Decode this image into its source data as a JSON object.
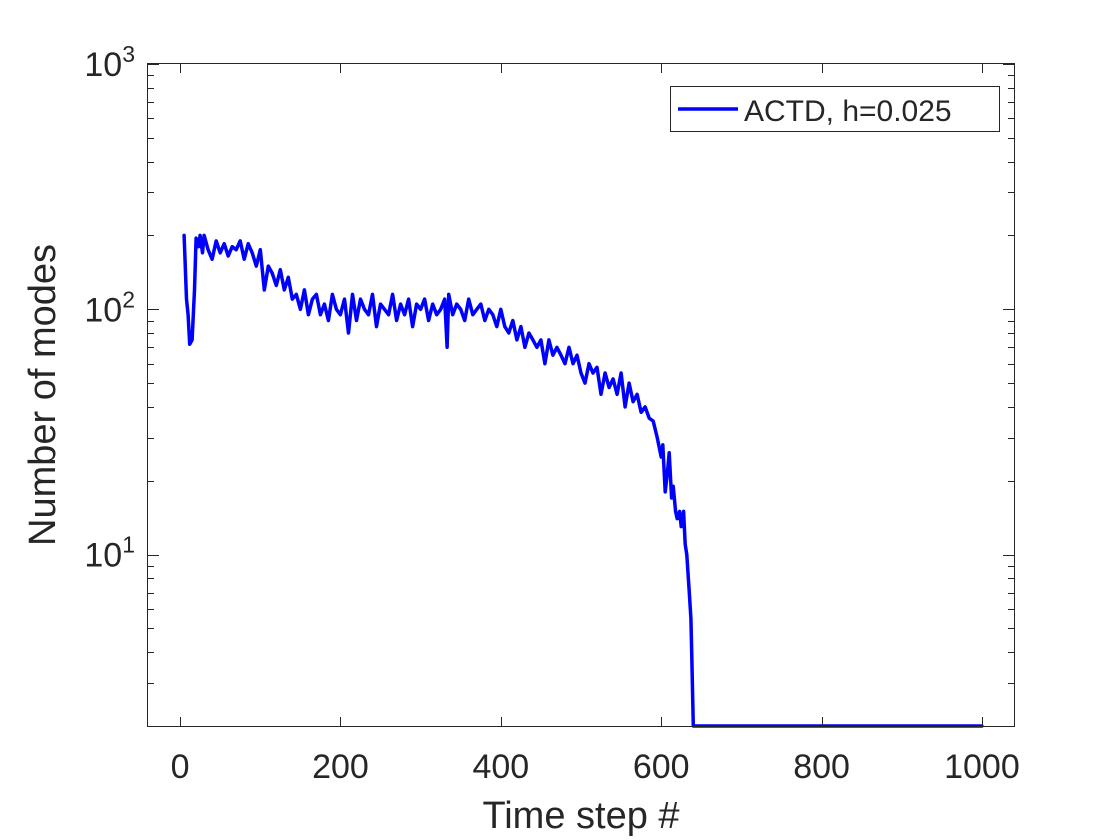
{
  "chart_data": {
    "type": "line",
    "xlabel": "Time step #",
    "ylabel": "Number of modes",
    "xlim": [
      -40,
      1040
    ],
    "ylim": [
      2,
      1000
    ],
    "yscale": "log",
    "xticks": [
      0,
      200,
      400,
      600,
      800,
      1000
    ],
    "yticks": [
      {
        "value": 10,
        "base": "10",
        "exp": "1"
      },
      {
        "value": 100,
        "base": "10",
        "exp": "2"
      },
      {
        "value": 1000,
        "base": "10",
        "exp": "3"
      }
    ],
    "grid": false,
    "legend": {
      "position": "top-right"
    },
    "series": [
      {
        "name": "ACTD, h=0.025",
        "color": "#0000ff",
        "x": [
          5,
          8,
          10,
          12,
          15,
          18,
          20,
          23,
          25,
          28,
          30,
          35,
          40,
          45,
          50,
          55,
          60,
          65,
          70,
          75,
          80,
          85,
          90,
          95,
          100,
          105,
          110,
          115,
          120,
          125,
          130,
          135,
          140,
          145,
          150,
          155,
          160,
          165,
          170,
          175,
          180,
          185,
          190,
          195,
          200,
          205,
          210,
          215,
          220,
          225,
          230,
          235,
          240,
          245,
          250,
          255,
          260,
          265,
          270,
          275,
          280,
          285,
          290,
          295,
          300,
          305,
          310,
          315,
          320,
          325,
          330,
          333,
          335,
          340,
          345,
          350,
          355,
          360,
          365,
          370,
          375,
          380,
          385,
          390,
          395,
          400,
          405,
          410,
          415,
          420,
          425,
          430,
          435,
          440,
          445,
          450,
          455,
          460,
          465,
          470,
          475,
          480,
          485,
          490,
          495,
          500,
          505,
          510,
          515,
          520,
          525,
          530,
          535,
          540,
          545,
          550,
          555,
          560,
          565,
          570,
          575,
          580,
          585,
          590,
          595,
          600,
          602,
          605,
          608,
          610,
          613,
          615,
          618,
          620,
          623,
          625,
          628,
          630,
          632,
          635,
          637,
          638,
          640,
          642,
          645,
          650,
          700,
          800,
          900,
          1000
        ],
        "y": [
          200,
          110,
          95,
          72,
          75,
          120,
          195,
          180,
          200,
          170,
          200,
          175,
          160,
          190,
          170,
          185,
          165,
          180,
          175,
          190,
          160,
          185,
          170,
          150,
          175,
          120,
          150,
          140,
          125,
          145,
          120,
          135,
          110,
          115,
          100,
          120,
          95,
          110,
          115,
          95,
          105,
          90,
          115,
          100,
          95,
          110,
          80,
          115,
          90,
          110,
          100,
          95,
          115,
          85,
          105,
          100,
          95,
          115,
          90,
          105,
          95,
          110,
          85,
          105,
          100,
          110,
          90,
          105,
          95,
          100,
          110,
          70,
          115,
          95,
          105,
          100,
          90,
          110,
          95,
          100,
          105,
          90,
          100,
          95,
          85,
          100,
          85,
          80,
          90,
          75,
          85,
          70,
          80,
          75,
          70,
          75,
          60,
          75,
          65,
          70,
          65,
          60,
          70,
          60,
          65,
          55,
          50,
          60,
          55,
          58,
          45,
          55,
          48,
          52,
          45,
          55,
          40,
          50,
          42,
          45,
          38,
          40,
          36,
          35,
          30,
          25,
          28,
          18,
          22,
          26,
          17,
          19,
          15,
          14,
          15,
          13,
          15,
          11,
          10,
          7,
          5.5,
          4,
          2,
          2,
          2,
          2,
          2,
          2,
          2,
          2
        ]
      }
    ]
  }
}
